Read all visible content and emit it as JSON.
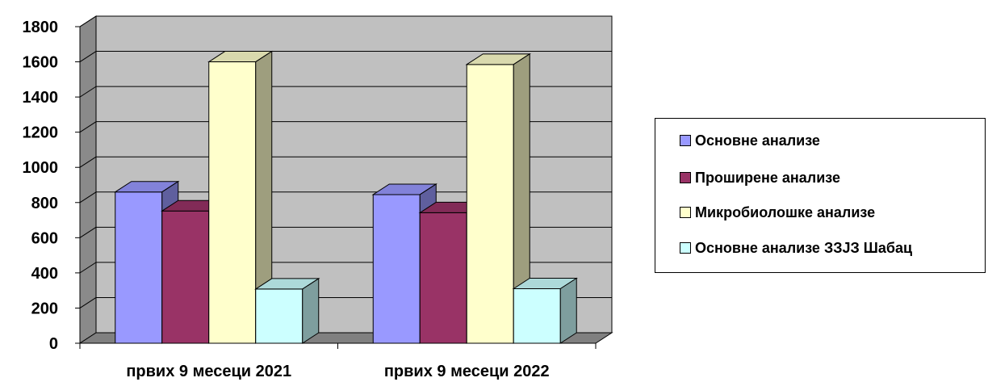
{
  "chart_data": {
    "type": "bar",
    "three_d": true,
    "categories": [
      "првих 9 месеци 2021",
      "првих 9 месеци 2022"
    ],
    "series": [
      {
        "name": "Основне анализе",
        "values": [
          860,
          845
        ],
        "color": "#9999FF"
      },
      {
        "name": "Проширене анализе",
        "values": [
          752,
          742
        ],
        "color": "#993366"
      },
      {
        "name": "Микробиолошке анализе",
        "values": [
          1600,
          1585
        ],
        "color": "#FFFFCC"
      },
      {
        "name": "Основне анализе ЗЗЈЗ Шабац",
        "values": [
          308,
          310
        ],
        "color": "#CCFFFF"
      }
    ],
    "ylim": [
      0,
      1800
    ],
    "yticks": [
      "0",
      "200",
      "400",
      "600",
      "800",
      "1000",
      "1200",
      "1400",
      "1600",
      "1800"
    ],
    "xlabel": "",
    "ylabel": "",
    "title": "",
    "grid": true,
    "legend_position": "right",
    "wall_color": "#C0C0C0",
    "floor_color": "#808080"
  }
}
